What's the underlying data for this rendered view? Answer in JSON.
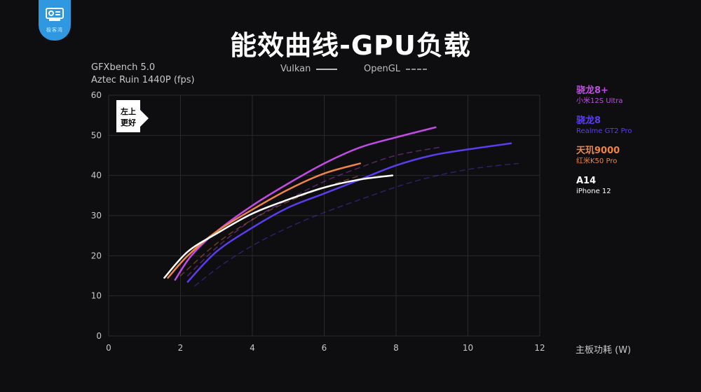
{
  "logo": {
    "text": "极客湾"
  },
  "header": {
    "title": "能效曲线-GPU负载"
  },
  "benchmark": {
    "line1": "GFXbench 5.0",
    "line2": "Aztec Ruin 1440P (fps)"
  },
  "api_legend": [
    {
      "label": "Vulkan",
      "style": "solid"
    },
    {
      "label": "OpenGL",
      "style": "dashed"
    }
  ],
  "chart_data": {
    "type": "line",
    "xlabel": "主板功耗 (W)",
    "ylabel": "",
    "xlim": [
      0,
      12
    ],
    "ylim": [
      0,
      60
    ],
    "xticks": [
      0,
      2,
      4,
      6,
      8,
      10,
      12
    ],
    "yticks": [
      0,
      10,
      20,
      30,
      40,
      50,
      60
    ],
    "grid": true,
    "annotation": {
      "line1": "左上",
      "line2": "更好"
    },
    "series": [
      {
        "chip": "骁龙8+",
        "device": "小米12S Ultra",
        "color": "#c24be8",
        "api": "Vulkan",
        "points": [
          [
            1.85,
            14
          ],
          [
            2.3,
            20
          ],
          [
            3.0,
            26
          ],
          [
            4.0,
            32.5
          ],
          [
            5.0,
            38
          ],
          [
            6.0,
            43
          ],
          [
            7.0,
            47
          ],
          [
            8.0,
            49.5
          ],
          [
            9.1,
            52
          ]
        ]
      },
      {
        "chip": "骁龙8+",
        "device": "小米12S Ultra",
        "color": "#c24be8",
        "api": "OpenGL",
        "points": [
          [
            2.2,
            15
          ],
          [
            3.0,
            22
          ],
          [
            4.0,
            29
          ],
          [
            5.0,
            34
          ],
          [
            6.0,
            38.5
          ],
          [
            7.0,
            42
          ],
          [
            8.0,
            45
          ],
          [
            9.2,
            47
          ]
        ]
      },
      {
        "chip": "骁龙8",
        "device": "Realme GT2 Pro",
        "color": "#5b3df0",
        "api": "Vulkan",
        "points": [
          [
            2.2,
            13.5
          ],
          [
            3.0,
            21
          ],
          [
            4.0,
            27
          ],
          [
            5.0,
            32
          ],
          [
            6.0,
            35.5
          ],
          [
            7.0,
            39
          ],
          [
            8.0,
            42.5
          ],
          [
            9.0,
            45
          ],
          [
            10.0,
            46.5
          ],
          [
            11.2,
            48
          ]
        ]
      },
      {
        "chip": "骁龙8",
        "device": "Realme GT2 Pro",
        "color": "#5b3df0",
        "api": "OpenGL",
        "points": [
          [
            2.4,
            12.5
          ],
          [
            3.2,
            18
          ],
          [
            4.2,
            23.5
          ],
          [
            5.5,
            29
          ],
          [
            7.0,
            34
          ],
          [
            8.5,
            38.5
          ],
          [
            10.0,
            41.5
          ],
          [
            11.4,
            43
          ]
        ]
      },
      {
        "chip": "天玑9000",
        "device": "红米K50 Pro",
        "color": "#ef8444",
        "api": "Vulkan",
        "points": [
          [
            1.65,
            14.5
          ],
          [
            2.2,
            20
          ],
          [
            3.0,
            26
          ],
          [
            4.0,
            31.5
          ],
          [
            5.0,
            36.5
          ],
          [
            6.0,
            40.5
          ],
          [
            7.0,
            43
          ]
        ]
      },
      {
        "chip": "天玑9000",
        "device": "红米K50 Pro",
        "color": "#ef8444",
        "api": "OpenGL",
        "points": [
          [
            2.0,
            15
          ],
          [
            3.0,
            23
          ],
          [
            4.0,
            29
          ],
          [
            5.0,
            33.5
          ],
          [
            6.0,
            37
          ],
          [
            7.0,
            40
          ]
        ]
      },
      {
        "chip": "A14",
        "device": "iPhone 12",
        "color": "#ffffff",
        "api": "Vulkan",
        "points": [
          [
            1.55,
            14.5
          ],
          [
            2.2,
            21
          ],
          [
            3.0,
            25.5
          ],
          [
            4.0,
            30.5
          ],
          [
            5.0,
            34
          ],
          [
            6.0,
            37
          ],
          [
            7.0,
            39
          ],
          [
            7.9,
            40
          ]
        ]
      }
    ]
  }
}
